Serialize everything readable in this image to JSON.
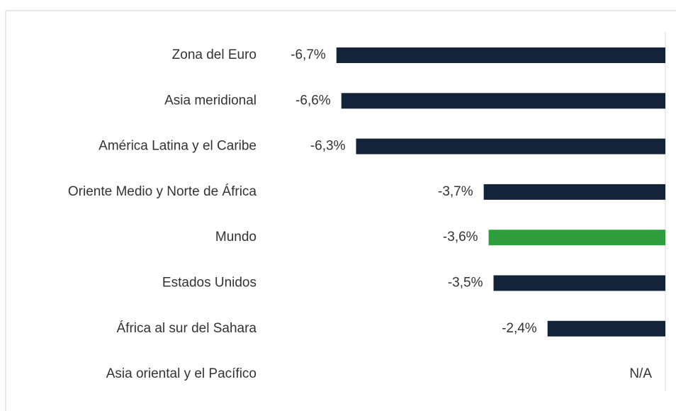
{
  "chart_data": {
    "type": "barh",
    "categories": [
      "Zona del Euro",
      "Asia meridional",
      "América Latina y el Caribe",
      "Oriente Medio y Norte de África",
      "Mundo",
      "Estados Unidos",
      "África al sur del Sahara",
      "Asia oriental y el Pacífico"
    ],
    "values": [
      -6.7,
      -6.6,
      -6.3,
      -3.7,
      -3.6,
      -3.5,
      -2.4,
      null
    ],
    "value_labels": [
      "-6,7%",
      "-6,6%",
      "-6,3%",
      "-3,7%",
      "-3,6%",
      "-3,5%",
      "-2,4%",
      "N/A"
    ],
    "colors": [
      "#13243a",
      "#13243a",
      "#13243a",
      "#13243a",
      "#2e9e3f",
      "#13243a",
      "#13243a",
      "#13243a"
    ],
    "xlim": [
      -7,
      0
    ]
  }
}
